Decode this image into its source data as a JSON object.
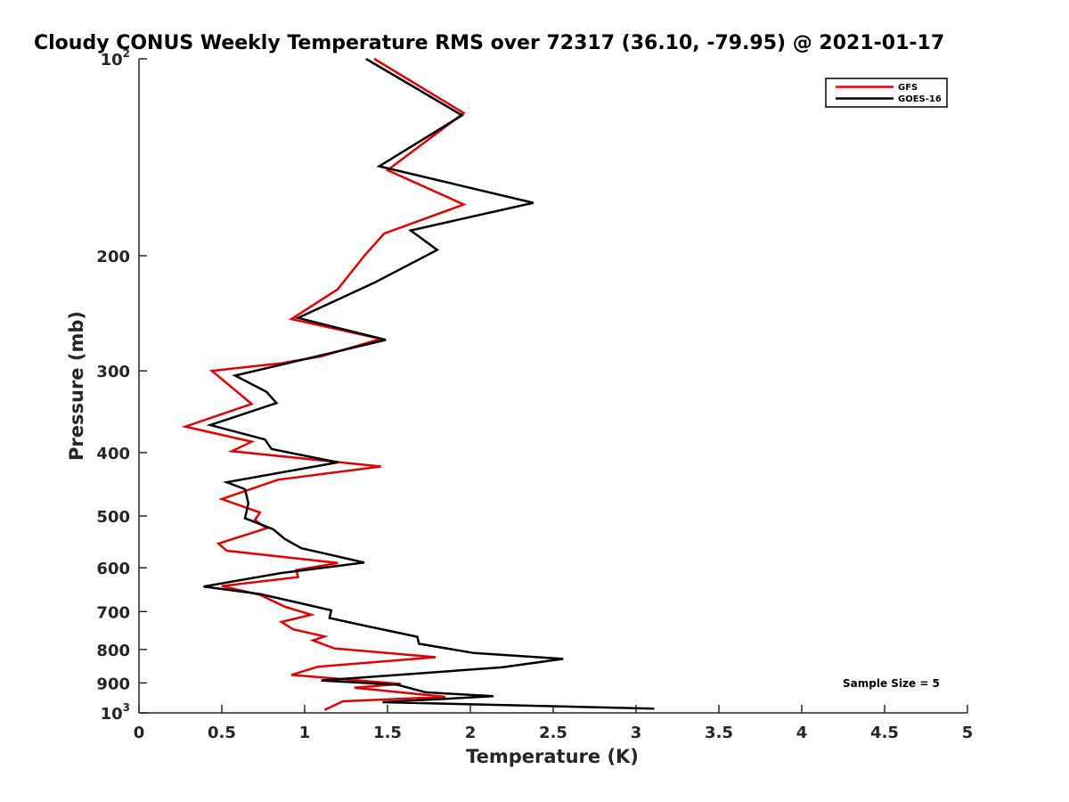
{
  "chart_data": {
    "type": "line",
    "title": "Cloudy CONUS Weekly Temperature RMS over 72317 (36.10, -79.95) @ 2021-01-17",
    "xlabel": "Temperature (K)",
    "ylabel": "Pressure (mb)",
    "xlim": [
      0,
      5
    ],
    "ylim": [
      100,
      1000
    ],
    "y_scale": "log",
    "y_reversed": true,
    "grid": false,
    "legend_position": "top-right",
    "x_ticks": [
      {
        "value": 0,
        "label": "0"
      },
      {
        "value": 0.5,
        "label": "0.5"
      },
      {
        "value": 1,
        "label": "1"
      },
      {
        "value": 1.5,
        "label": "1.5"
      },
      {
        "value": 2,
        "label": "2"
      },
      {
        "value": 2.5,
        "label": "2.5"
      },
      {
        "value": 3,
        "label": "3"
      },
      {
        "value": 3.5,
        "label": "3.5"
      },
      {
        "value": 4,
        "label": "4"
      },
      {
        "value": 4.5,
        "label": "4.5"
      },
      {
        "value": 5,
        "label": "5"
      }
    ],
    "y_ticks": [
      {
        "value": 100,
        "base": "10",
        "exp": "2"
      },
      {
        "value": 200,
        "label": "200"
      },
      {
        "value": 300,
        "label": "300"
      },
      {
        "value": 400,
        "label": "400"
      },
      {
        "value": 500,
        "label": "500"
      },
      {
        "value": 600,
        "label": "600"
      },
      {
        "value": 700,
        "label": "700"
      },
      {
        "value": 800,
        "label": "800"
      },
      {
        "value": 900,
        "label": "900"
      },
      {
        "value": 1000,
        "base": "10",
        "exp": "3"
      }
    ],
    "series": [
      {
        "name": "GFS",
        "color": "#e00000",
        "points": [
          [
            1.42,
            100
          ],
          [
            1.96,
            121
          ],
          [
            1.5,
            148
          ],
          [
            1.96,
            167
          ],
          [
            1.48,
            185
          ],
          [
            1.36,
            200
          ],
          [
            1.2,
            225
          ],
          [
            0.92,
            250
          ],
          [
            1.46,
            268
          ],
          [
            1.1,
            285
          ],
          [
            0.86,
            292
          ],
          [
            0.44,
            300
          ],
          [
            0.68,
            337
          ],
          [
            0.28,
            365
          ],
          [
            0.68,
            385
          ],
          [
            0.56,
            398
          ],
          [
            1.46,
            420
          ],
          [
            0.84,
            440
          ],
          [
            0.5,
            471
          ],
          [
            0.73,
            494
          ],
          [
            0.7,
            507
          ],
          [
            0.77,
            522
          ],
          [
            0.48,
            551
          ],
          [
            0.53,
            565
          ],
          [
            1.2,
            590
          ],
          [
            0.95,
            605
          ],
          [
            0.96,
            620
          ],
          [
            0.5,
            640
          ],
          [
            0.73,
            660
          ],
          [
            0.88,
            688
          ],
          [
            1.04,
            708
          ],
          [
            0.86,
            726
          ],
          [
            0.93,
            745
          ],
          [
            1.12,
            764
          ],
          [
            1.05,
            775
          ],
          [
            1.18,
            797
          ],
          [
            1.79,
            822
          ],
          [
            1.08,
            850
          ],
          [
            0.92,
            875
          ],
          [
            1.58,
            903
          ],
          [
            1.3,
            915
          ],
          [
            1.85,
            945
          ],
          [
            1.23,
            960
          ],
          [
            1.12,
            990
          ]
        ]
      },
      {
        "name": "GOES-16",
        "color": "#000000",
        "points": [
          [
            1.37,
            100
          ],
          [
            1.95,
            122
          ],
          [
            1.45,
            146
          ],
          [
            2.38,
            166
          ],
          [
            1.64,
            183
          ],
          [
            1.8,
            196
          ],
          [
            1.42,
            220
          ],
          [
            0.96,
            249
          ],
          [
            1.49,
            269
          ],
          [
            1.1,
            284
          ],
          [
            0.58,
            305
          ],
          [
            0.77,
            323
          ],
          [
            0.83,
            336
          ],
          [
            0.43,
            363
          ],
          [
            0.76,
            382
          ],
          [
            0.8,
            395
          ],
          [
            1.2,
            414
          ],
          [
            0.53,
            444
          ],
          [
            0.64,
            455
          ],
          [
            0.66,
            478
          ],
          [
            0.64,
            504
          ],
          [
            0.81,
            524
          ],
          [
            0.88,
            542
          ],
          [
            0.98,
            560
          ],
          [
            1.36,
            589
          ],
          [
            0.86,
            611
          ],
          [
            0.39,
            641
          ],
          [
            0.73,
            658
          ],
          [
            1.0,
            682
          ],
          [
            1.16,
            697
          ],
          [
            1.15,
            716
          ],
          [
            1.4,
            739
          ],
          [
            1.68,
            765
          ],
          [
            1.69,
            784
          ],
          [
            2.02,
            810
          ],
          [
            2.56,
            827
          ],
          [
            2.19,
            852
          ],
          [
            1.1,
            892
          ],
          [
            1.56,
            906
          ],
          [
            1.73,
            930
          ],
          [
            2.14,
            943
          ],
          [
            1.47,
            963
          ],
          [
            3.11,
            985
          ]
        ]
      }
    ],
    "annotations": [
      {
        "text": "Sample Size = 5"
      }
    ]
  }
}
